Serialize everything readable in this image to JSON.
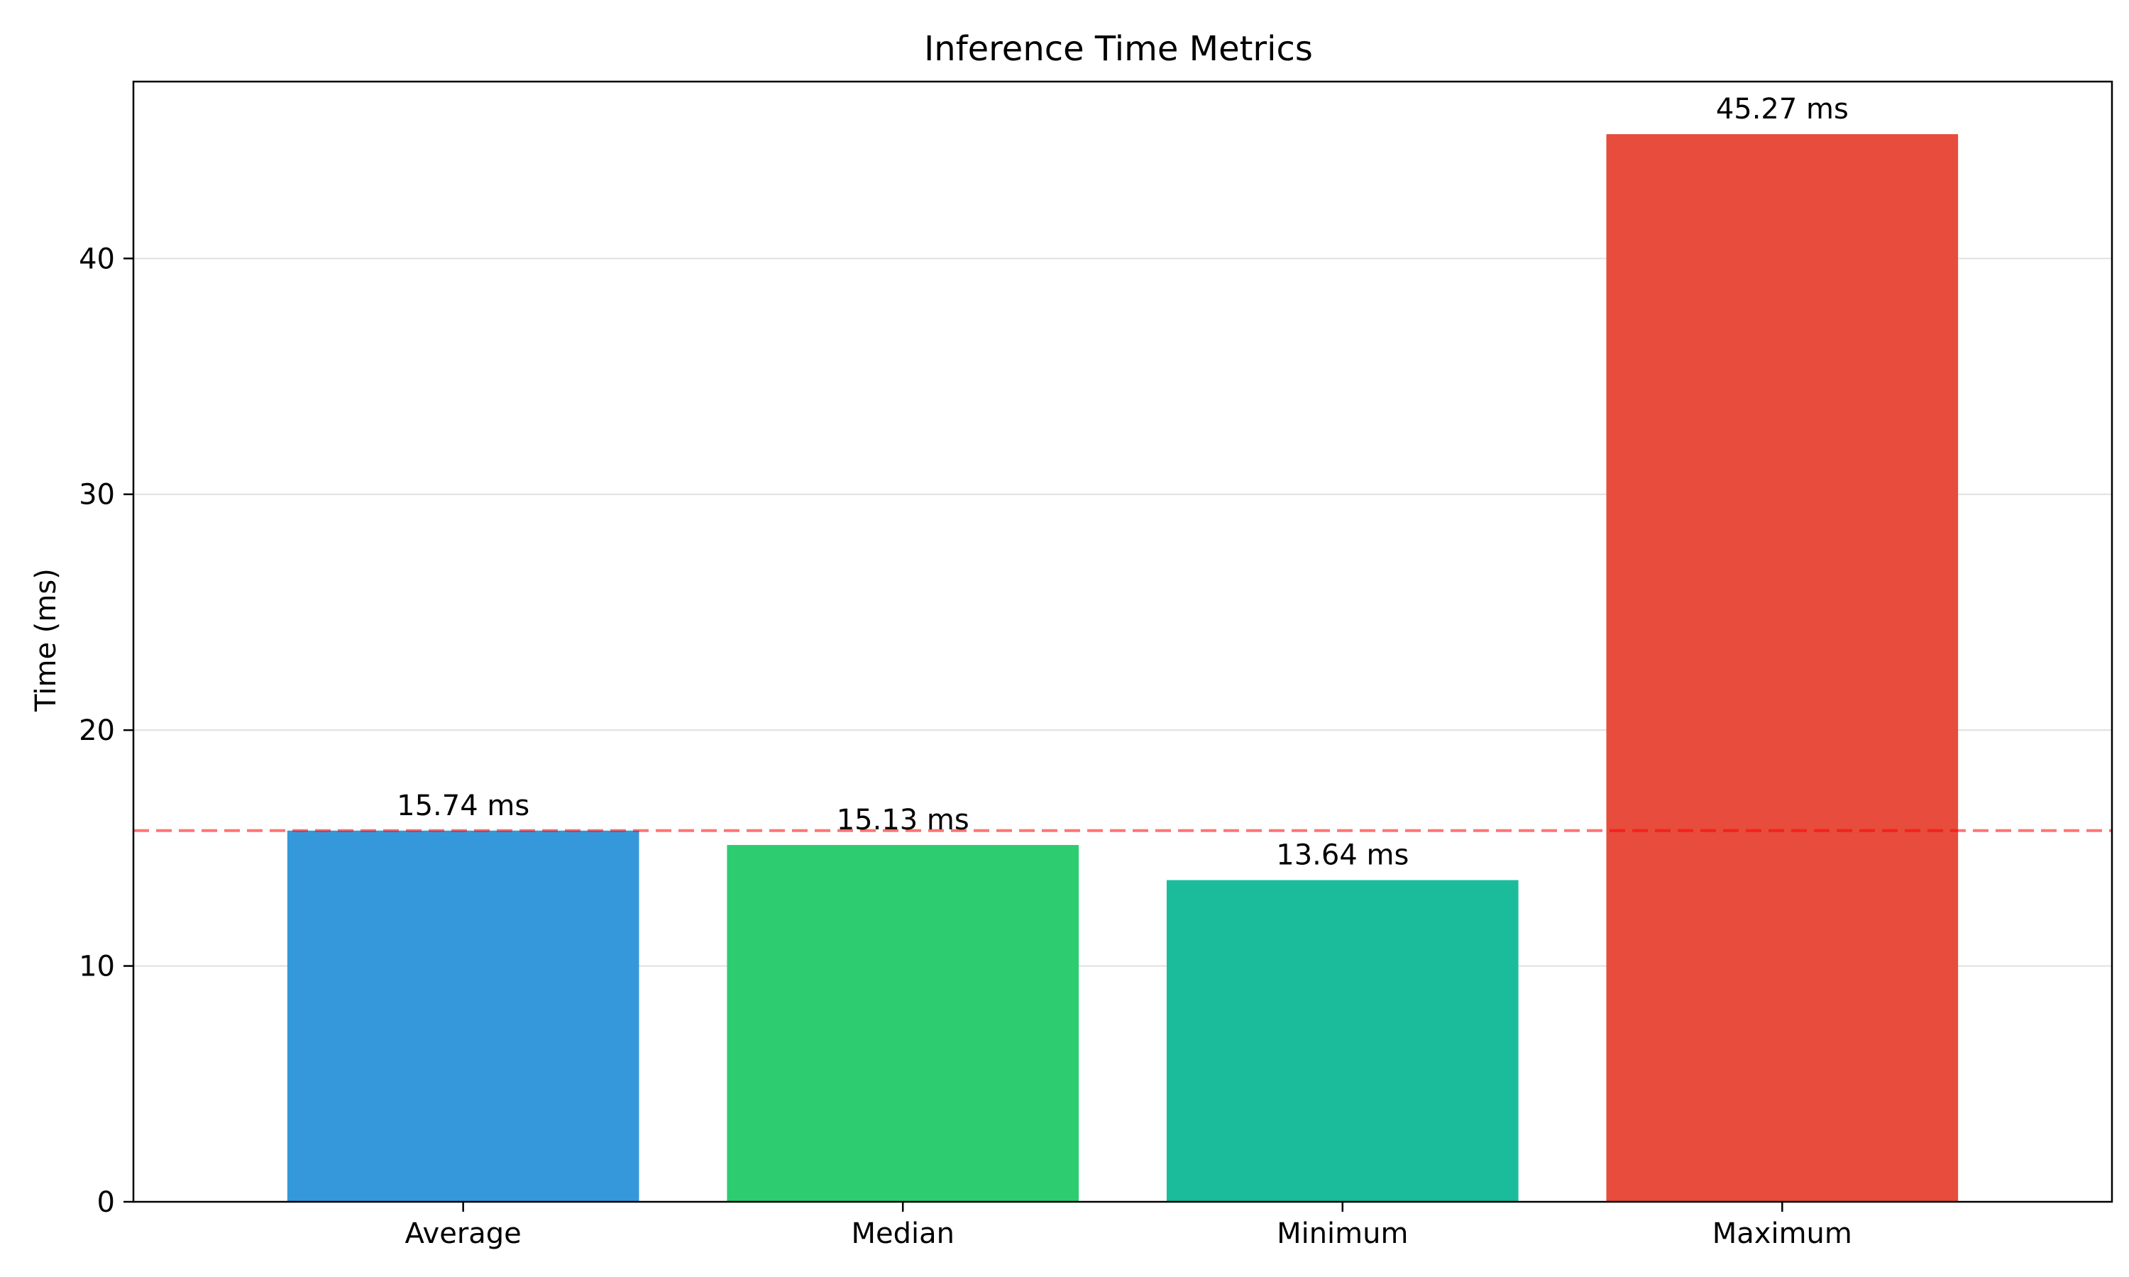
{
  "chart_data": {
    "type": "bar",
    "title": "Inference Time Metrics",
    "xlabel": "",
    "ylabel": "Time (ms)",
    "categories": [
      "Average",
      "Median",
      "Minimum",
      "Maximum"
    ],
    "values": [
      15.74,
      15.13,
      13.64,
      45.27
    ],
    "value_labels": [
      "15.74 ms",
      "15.13 ms",
      "13.64 ms",
      "45.27 ms"
    ],
    "colors": [
      "#3498db",
      "#2ecc71",
      "#1abc9c",
      "#e74c3c"
    ],
    "ylim": [
      0,
      47.5
    ],
    "yticks": [
      0,
      10,
      20,
      30,
      40
    ],
    "ytick_labels": [
      "0",
      "10",
      "20",
      "30",
      "40"
    ],
    "grid": "y",
    "reference_line": {
      "value": 15.74,
      "color": "#ff0000",
      "style": "dashed"
    }
  }
}
